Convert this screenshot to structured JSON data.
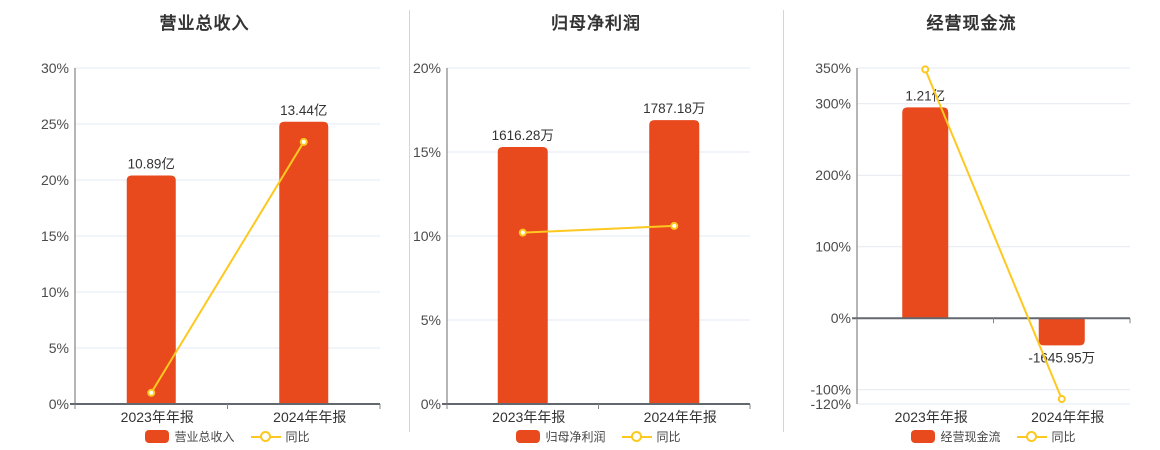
{
  "figure": {
    "bar_color": "#e8491d",
    "line_color": "#fdc81f",
    "grid_color": "#e3e9f0",
    "axis_color": "#848484",
    "baseline_color": "#63686e",
    "text_color": "#333333",
    "tick_text_color": "#4b4b4b"
  },
  "chart_data": [
    {
      "type": "bar",
      "title": "营业总收入",
      "categories": [
        "2023年年报",
        "2024年年报"
      ],
      "series": [
        {
          "name": "营业总收入",
          "type": "bar",
          "value_labels": [
            "10.89亿",
            "13.44亿"
          ],
          "plot_pct": [
            20.4,
            25.2
          ]
        },
        {
          "name": "同比",
          "type": "line",
          "plot_pct": [
            1.0,
            23.4
          ]
        }
      ],
      "ylim": [
        0,
        30
      ],
      "y_ticks": [
        {
          "v": 30,
          "label": "30%"
        },
        {
          "v": 25,
          "label": "25%"
        },
        {
          "v": 20,
          "label": "20%"
        },
        {
          "v": 15,
          "label": "15%"
        },
        {
          "v": 10,
          "label": "10%"
        },
        {
          "v": 5,
          "label": "5%"
        },
        {
          "v": 0,
          "label": "0%"
        }
      ],
      "grid": true,
      "legend_position": "bottom",
      "legend": [
        "营业总收入",
        "同比"
      ]
    },
    {
      "type": "bar",
      "title": "归母净利润",
      "categories": [
        "2023年年报",
        "2024年年报"
      ],
      "series": [
        {
          "name": "归母净利润",
          "type": "bar",
          "value_labels": [
            "1616.28万",
            "1787.18万"
          ],
          "plot_pct": [
            15.3,
            16.9
          ]
        },
        {
          "name": "同比",
          "type": "line",
          "plot_pct": [
            10.2,
            10.6
          ]
        }
      ],
      "ylim": [
        0,
        20
      ],
      "y_ticks": [
        {
          "v": 20,
          "label": "20%"
        },
        {
          "v": 15,
          "label": "15%"
        },
        {
          "v": 10,
          "label": "10%"
        },
        {
          "v": 5,
          "label": "5%"
        },
        {
          "v": 0,
          "label": "0%"
        }
      ],
      "grid": true,
      "legend_position": "bottom",
      "legend": [
        "归母净利润",
        "同比"
      ]
    },
    {
      "type": "bar",
      "title": "经营现金流",
      "categories": [
        "2023年年报",
        "2024年年报"
      ],
      "series": [
        {
          "name": "经营现金流",
          "type": "bar",
          "value_labels": [
            "1.21亿",
            "-1645.95万"
          ],
          "plot_pct": [
            295,
            -38
          ]
        },
        {
          "name": "同比",
          "type": "line",
          "plot_pct": [
            348,
            -113
          ]
        }
      ],
      "ylim": [
        -120,
        350
      ],
      "y_ticks": [
        {
          "v": 350,
          "label": "350%"
        },
        {
          "v": 300,
          "label": "300%"
        },
        {
          "v": 200,
          "label": "200%"
        },
        {
          "v": 100,
          "label": "100%"
        },
        {
          "v": 0,
          "label": "0%"
        },
        {
          "v": -100,
          "label": "-100%"
        },
        {
          "v": -120,
          "label": "-120%"
        }
      ],
      "grid": true,
      "legend_position": "bottom",
      "legend": [
        "经营现金流",
        "同比"
      ]
    }
  ]
}
